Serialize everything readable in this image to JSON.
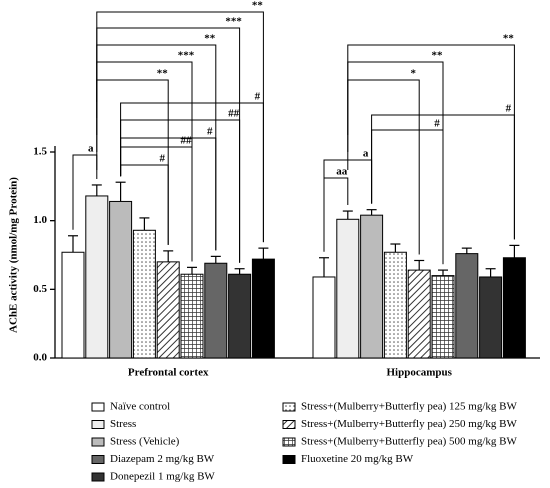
{
  "chart_data": {
    "type": "bar",
    "ylabel": "AChE activity (nmol/mg Protein)",
    "categories": [
      "Prefrontal cortex",
      "Hippocampus"
    ],
    "ylim": [
      0,
      1.5
    ],
    "yticks": [
      {
        "value": 0,
        "label": "0.0"
      },
      {
        "value": 0.5,
        "label": "0.5"
      },
      {
        "value": 1,
        "label": "1.0"
      },
      {
        "value": 1.5,
        "label": "1.5"
      }
    ],
    "series": [
      {
        "name": "Naïve control",
        "color": "#ffffff",
        "values": [
          0.77,
          0.59
        ],
        "errors": [
          0.12,
          0.14
        ]
      },
      {
        "name": "Stress",
        "color": "#eeeeee",
        "values": [
          1.18,
          1.01
        ],
        "errors": [
          0.08,
          0.06
        ]
      },
      {
        "name": "Stress (Vehicle)",
        "color": "#bbbbbb",
        "values": [
          1.14,
          1.04
        ],
        "errors": [
          0.14,
          0.04
        ]
      },
      {
        "name": "Stress+(Mulberry+Butterfly pea) 125 mg/kg BW",
        "color": "#ffffff",
        "pattern": "dots",
        "values": [
          0.93,
          0.77
        ],
        "errors": [
          0.09,
          0.06
        ]
      },
      {
        "name": "Stress+(Mulberry+Butterfly pea) 250 mg/kg BW",
        "color": "#ffffff",
        "pattern": "hatch",
        "values": [
          0.7,
          0.64
        ],
        "errors": [
          0.08,
          0.07
        ]
      },
      {
        "name": "Stress+(Mulberry+Butterfly pea) 500 mg/kg BW",
        "color": "#ffffff",
        "pattern": "grid",
        "values": [
          0.61,
          0.6
        ],
        "errors": [
          0.05,
          0.04
        ]
      },
      {
        "name": "Diazepam 2 mg/kg BW",
        "color": "#666666",
        "values": [
          0.69,
          0.76
        ],
        "errors": [
          0.05,
          0.04
        ]
      },
      {
        "name": "Donepezil 1 mg/kg BW",
        "color": "#333333",
        "values": [
          0.61,
          0.59
        ],
        "errors": [
          0.04,
          0.06
        ]
      },
      {
        "name": "Fluoxetine 20 mg/kg BW",
        "color": "#000000",
        "values": [
          0.72,
          0.73
        ],
        "errors": [
          0.08,
          0.09
        ]
      }
    ],
    "annotations": [
      {
        "label": "**",
        "group": 0,
        "from": 1,
        "to": 8
      },
      {
        "label": "***",
        "group": 0,
        "from": 1,
        "to": 7
      },
      {
        "label": "**",
        "group": 0,
        "from": 1,
        "to": 6
      },
      {
        "label": "***",
        "group": 0,
        "from": 1,
        "to": 5
      },
      {
        "label": "**",
        "group": 0,
        "from": 1,
        "to": 4
      },
      {
        "label": "#",
        "group": 0,
        "from": 2,
        "to": 8
      },
      {
        "label": "##",
        "group": 0,
        "from": 2,
        "to": 7
      },
      {
        "label": "#",
        "group": 0,
        "from": 2,
        "to": 6
      },
      {
        "label": "##",
        "group": 0,
        "from": 2,
        "to": 5
      },
      {
        "label": "#",
        "group": 0,
        "from": 2,
        "to": 4
      },
      {
        "label": "a",
        "group": 0,
        "from": 0,
        "to": 1
      },
      {
        "label": "**",
        "group": 1,
        "from": 1,
        "to": 8
      },
      {
        "label": "**",
        "group": 1,
        "from": 1,
        "to": 5
      },
      {
        "label": "*",
        "group": 1,
        "from": 1,
        "to": 4
      },
      {
        "label": "#",
        "group": 1,
        "from": 2,
        "to": 8
      },
      {
        "label": "#",
        "group": 1,
        "from": 2,
        "to": 5
      },
      {
        "label": "a",
        "group": 1,
        "from": 0,
        "to": 2
      },
      {
        "label": "aa",
        "group": 1,
        "from": 0,
        "to": 1
      }
    ]
  }
}
